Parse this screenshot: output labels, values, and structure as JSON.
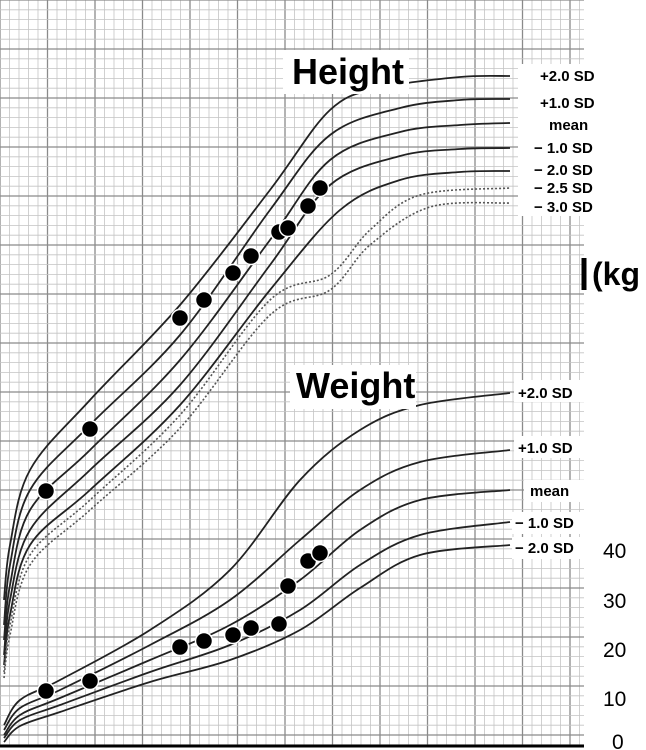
{
  "chart_data": {
    "type": "line",
    "grid": true,
    "unit_label": "(kg",
    "y_tick_labels": [
      "40",
      "30",
      "20",
      "10",
      "0"
    ],
    "height": {
      "title": "Height",
      "curve_labels": [
        "+2.0 SD",
        "+1.0 SD",
        "mean",
        "− 1.0 SD",
        "− 2.0 SD",
        "− 2.5 SD",
        "− 3.0 SD"
      ],
      "series": [
        {
          "name": "+2.0 SD",
          "style": "solid",
          "values": [
            [
              4,
              600
            ],
            [
              10,
              545
            ],
            [
              30,
              470
            ],
            [
              90,
              400
            ],
            [
              180,
              305
            ],
            [
              270,
              190
            ],
            [
              330,
              110
            ],
            [
              380,
              88
            ],
            [
              460,
              77
            ],
            [
              510,
              76
            ]
          ]
        },
        {
          "name": "+1.0 SD",
          "style": "solid",
          "values": [
            [
              4,
              625
            ],
            [
              10,
              565
            ],
            [
              30,
              490
            ],
            [
              90,
              425
            ],
            [
              180,
              335
            ],
            [
              270,
              210
            ],
            [
              330,
              135
            ],
            [
              400,
              108
            ],
            [
              460,
              100
            ],
            [
              510,
              99
            ]
          ]
        },
        {
          "name": "mean",
          "style": "solid",
          "values": [
            [
              4,
              640
            ],
            [
              10,
              585
            ],
            [
              30,
              510
            ],
            [
              90,
              450
            ],
            [
              180,
              360
            ],
            [
              270,
              240
            ],
            [
              330,
              160
            ],
            [
              400,
              132
            ],
            [
              460,
              125
            ],
            [
              510,
              123
            ]
          ]
        },
        {
          "name": "− 1.0 SD",
          "style": "solid",
          "values": [
            [
              4,
              655
            ],
            [
              10,
              600
            ],
            [
              30,
              530
            ],
            [
              90,
              470
            ],
            [
              180,
              385
            ],
            [
              270,
              265
            ],
            [
              330,
              185
            ],
            [
              400,
              156
            ],
            [
              460,
              149
            ],
            [
              510,
              148
            ]
          ]
        },
        {
          "name": "− 2.0 SD",
          "style": "solid",
          "values": [
            [
              4,
              665
            ],
            [
              10,
              615
            ],
            [
              30,
              545
            ],
            [
              90,
              490
            ],
            [
              180,
              405
            ],
            [
              270,
              290
            ],
            [
              340,
              210
            ],
            [
              400,
              180
            ],
            [
              460,
              172
            ],
            [
              510,
              171
            ]
          ]
        },
        {
          "name": "− 2.5 SD",
          "style": "dotted",
          "values": [
            [
              4,
              672
            ],
            [
              10,
              625
            ],
            [
              30,
              555
            ],
            [
              90,
              500
            ],
            [
              180,
              415
            ],
            [
              270,
              300
            ],
            [
              330,
              275
            ],
            [
              370,
              230
            ],
            [
              420,
              195
            ],
            [
              510,
              188
            ]
          ]
        },
        {
          "name": "− 3.0 SD",
          "style": "dotted",
          "values": [
            [
              4,
              678
            ],
            [
              10,
              635
            ],
            [
              30,
              565
            ],
            [
              90,
              510
            ],
            [
              180,
              428
            ],
            [
              270,
              315
            ],
            [
              330,
              290
            ],
            [
              370,
              245
            ],
            [
              430,
              207
            ],
            [
              510,
              203
            ]
          ]
        }
      ],
      "patient_points": [
        [
          46,
          491
        ],
        [
          90,
          429
        ],
        [
          180,
          318
        ],
        [
          204,
          300
        ],
        [
          233,
          273
        ],
        [
          251,
          256
        ],
        [
          279,
          232
        ],
        [
          288,
          228
        ],
        [
          308,
          206
        ],
        [
          320,
          188
        ]
      ]
    },
    "weight": {
      "title": "Weight",
      "curve_labels": [
        "+2.0 SD",
        "+1.0 SD",
        "mean",
        "− 1.0 SD",
        "− 2.0 SD"
      ],
      "series": [
        {
          "name": "+2.0 SD",
          "style": "solid",
          "values": [
            [
              4,
              725
            ],
            [
              20,
              700
            ],
            [
              60,
              680
            ],
            [
              150,
              630
            ],
            [
              230,
              570
            ],
            [
              300,
              480
            ],
            [
              360,
              430
            ],
            [
              420,
              405
            ],
            [
              510,
              393
            ]
          ]
        },
        {
          "name": "+1.0 SD",
          "style": "solid",
          "values": [
            [
              4,
              730
            ],
            [
              20,
              708
            ],
            [
              60,
              690
            ],
            [
              150,
              645
            ],
            [
              230,
              600
            ],
            [
              300,
              540
            ],
            [
              360,
              490
            ],
            [
              420,
              462
            ],
            [
              510,
              450
            ]
          ]
        },
        {
          "name": "mean",
          "style": "solid",
          "values": [
            [
              4,
              735
            ],
            [
              20,
              715
            ],
            [
              60,
              698
            ],
            [
              150,
              660
            ],
            [
              230,
              625
            ],
            [
              300,
              580
            ],
            [
              360,
              530
            ],
            [
              420,
              500
            ],
            [
              510,
              490
            ]
          ]
        },
        {
          "name": "− 1.0 SD",
          "style": "solid",
          "values": [
            [
              4,
              738
            ],
            [
              20,
              720
            ],
            [
              60,
              705
            ],
            [
              150,
              672
            ],
            [
              230,
              645
            ],
            [
              300,
              610
            ],
            [
              360,
              565
            ],
            [
              420,
              535
            ],
            [
              510,
              522
            ]
          ]
        },
        {
          "name": "− 2.0 SD",
          "style": "solid",
          "values": [
            [
              4,
              742
            ],
            [
              20,
              726
            ],
            [
              60,
              712
            ],
            [
              150,
              682
            ],
            [
              230,
              660
            ],
            [
              300,
              630
            ],
            [
              360,
              588
            ],
            [
              420,
              555
            ],
            [
              510,
              545
            ]
          ]
        }
      ],
      "patient_points": [
        [
          46,
          691
        ],
        [
          90,
          681
        ],
        [
          180,
          647
        ],
        [
          204,
          641
        ],
        [
          233,
          635
        ],
        [
          251,
          628
        ],
        [
          279,
          624
        ],
        [
          288,
          586
        ],
        [
          308,
          561
        ],
        [
          320,
          553
        ]
      ]
    }
  }
}
